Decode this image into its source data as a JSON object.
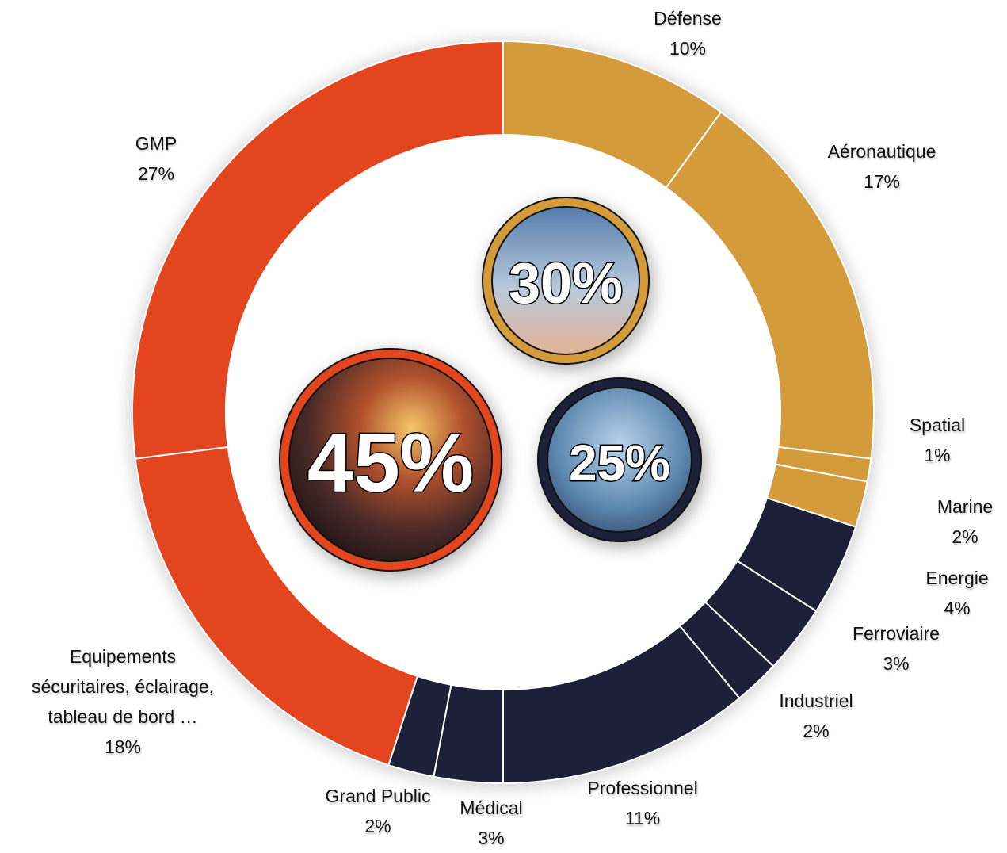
{
  "chart_data": {
    "type": "donut",
    "categories": [
      "Défense",
      "Aéronautique",
      "Spatial",
      "Marine",
      "Energie",
      "Ferroviaire",
      "Industriel",
      "Professionnel",
      "Médical",
      "Grand Public",
      "Equipements\nsécuritaires, éclairage,\ntableau de bord …",
      "GMP"
    ],
    "values": [
      10,
      17,
      1,
      2,
      4,
      3,
      2,
      11,
      3,
      2,
      18,
      27
    ],
    "value_labels": [
      "10%",
      "17%",
      "1%",
      "2%",
      "4%",
      "3%",
      "2%",
      "11%",
      "3%",
      "2%",
      "18%",
      "27%"
    ],
    "colors": [
      "#D39B3A",
      "#D39B3A",
      "#D39B3A",
      "#D39B3A",
      "#1C2039",
      "#1C2039",
      "#1C2039",
      "#1C2039",
      "#1C2039",
      "#1C2039",
      "#E3461F",
      "#E3461F"
    ],
    "groups": [
      {
        "value": 45,
        "label": "45%",
        "color": "#E3461F"
      },
      {
        "value": 30,
        "label": "30%",
        "color": "#D39B3A"
      },
      {
        "value": 25,
        "label": "25%",
        "color": "#1C2039"
      }
    ]
  }
}
